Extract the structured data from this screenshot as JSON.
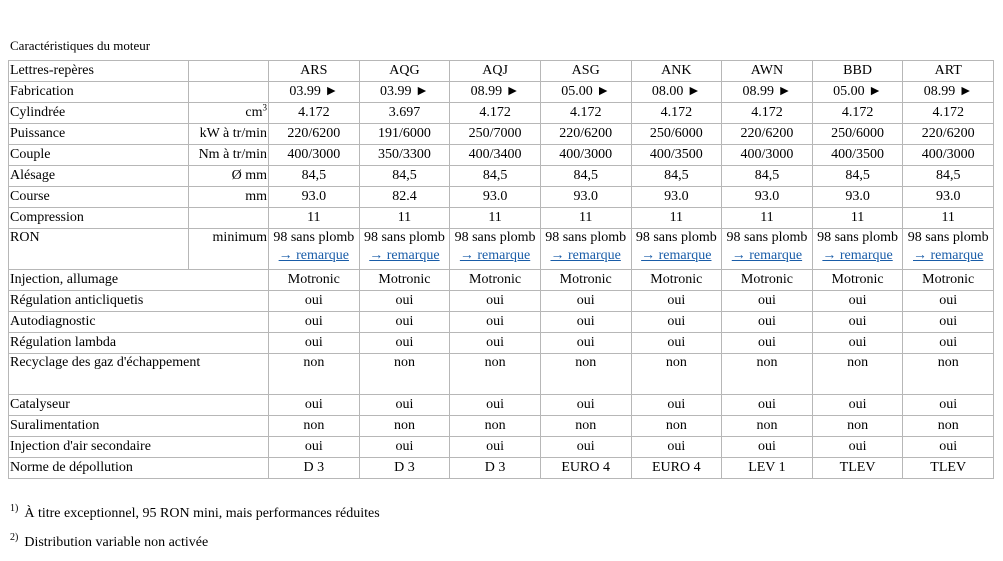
{
  "caption": "Caractéristiques du moteur",
  "engines": [
    "ARS",
    "AQG",
    "AQJ",
    "ASG",
    "ANK",
    "AWN",
    "BBD",
    "ART"
  ],
  "header_label": "Lettres-repères",
  "rows": [
    {
      "label": "Fabrication",
      "unit": "",
      "values": [
        "03.99 ►",
        "03.99 ►",
        "08.99 ►",
        "05.00 ►",
        "08.00 ►",
        "08.99 ►",
        "05.00 ►",
        "08.99 ►"
      ]
    },
    {
      "label": "Cylindrée",
      "unit": "cm",
      "unit_sup": "3",
      "values": [
        "4.172",
        "3.697",
        "4.172",
        "4.172",
        "4.172",
        "4.172",
        "4.172",
        "4.172"
      ]
    },
    {
      "label": "Puissance",
      "unit": "kW à tr/min",
      "values": [
        "220/6200",
        "191/6000",
        "250/7000",
        "220/6200",
        "250/6000",
        "220/6200",
        "250/6000",
        "220/6200"
      ]
    },
    {
      "label": "Couple",
      "unit": "Nm à tr/min",
      "values": [
        "400/3000",
        "350/3300",
        "400/3400",
        "400/3000",
        "400/3500",
        "400/3000",
        "400/3500",
        "400/3000"
      ]
    },
    {
      "label": "Alésage",
      "unit": "Ø mm",
      "values": [
        "84,5",
        "84,5",
        "84,5",
        "84,5",
        "84,5",
        "84,5",
        "84,5",
        "84,5"
      ]
    },
    {
      "label": "Course",
      "unit": "mm",
      "values": [
        "93.0",
        "82.4",
        "93.0",
        "93.0",
        "93.0",
        "93.0",
        "93.0",
        "93.0"
      ]
    },
    {
      "label": "Compression",
      "unit": "",
      "values": [
        "11",
        "11",
        "11",
        "11",
        "11",
        "11",
        "11",
        "11"
      ]
    }
  ],
  "ron": {
    "label": "RON",
    "unit": "minimum",
    "value": "98 sans plomb",
    "link": "→ remarque"
  },
  "rows2": [
    {
      "label": "Injection, allumage",
      "values": [
        "Motronic",
        "Motronic",
        "Motronic",
        "Motronic",
        "Motronic",
        "Motronic",
        "Motronic",
        "Motronic"
      ]
    },
    {
      "label": "Régulation anticliquetis",
      "values": [
        "oui",
        "oui",
        "oui",
        "oui",
        "oui",
        "oui",
        "oui",
        "oui"
      ]
    },
    {
      "label": "Autodiagnostic",
      "values": [
        "oui",
        "oui",
        "oui",
        "oui",
        "oui",
        "oui",
        "oui",
        "oui"
      ]
    },
    {
      "label": "Régulation lambda",
      "values": [
        "oui",
        "oui",
        "oui",
        "oui",
        "oui",
        "oui",
        "oui",
        "oui"
      ]
    },
    {
      "label": "Recyclage des gaz d'échappement",
      "values": [
        "non",
        "non",
        "non",
        "non",
        "non",
        "non",
        "non",
        "non"
      ],
      "tall": true
    },
    {
      "label": "Catalyseur",
      "values": [
        "oui",
        "oui",
        "oui",
        "oui",
        "oui",
        "oui",
        "oui",
        "oui"
      ]
    },
    {
      "label": "Suralimentation",
      "values": [
        "non",
        "non",
        "non",
        "non",
        "non",
        "non",
        "non",
        "non"
      ]
    },
    {
      "label": "Injection d'air secondaire",
      "values": [
        "oui",
        "oui",
        "oui",
        "oui",
        "oui",
        "oui",
        "oui",
        "oui"
      ]
    },
    {
      "label": "Norme de dépollution",
      "values": [
        "D 3",
        "D 3",
        "D 3",
        "EURO 4",
        "EURO 4",
        "LEV 1",
        "TLEV",
        "TLEV"
      ]
    }
  ],
  "notes": [
    {
      "num": "1)",
      "text": "À titre exceptionnel, 95 RON mini, mais performances réduites"
    },
    {
      "num": "2)",
      "text": "Distribution variable non activée"
    }
  ]
}
